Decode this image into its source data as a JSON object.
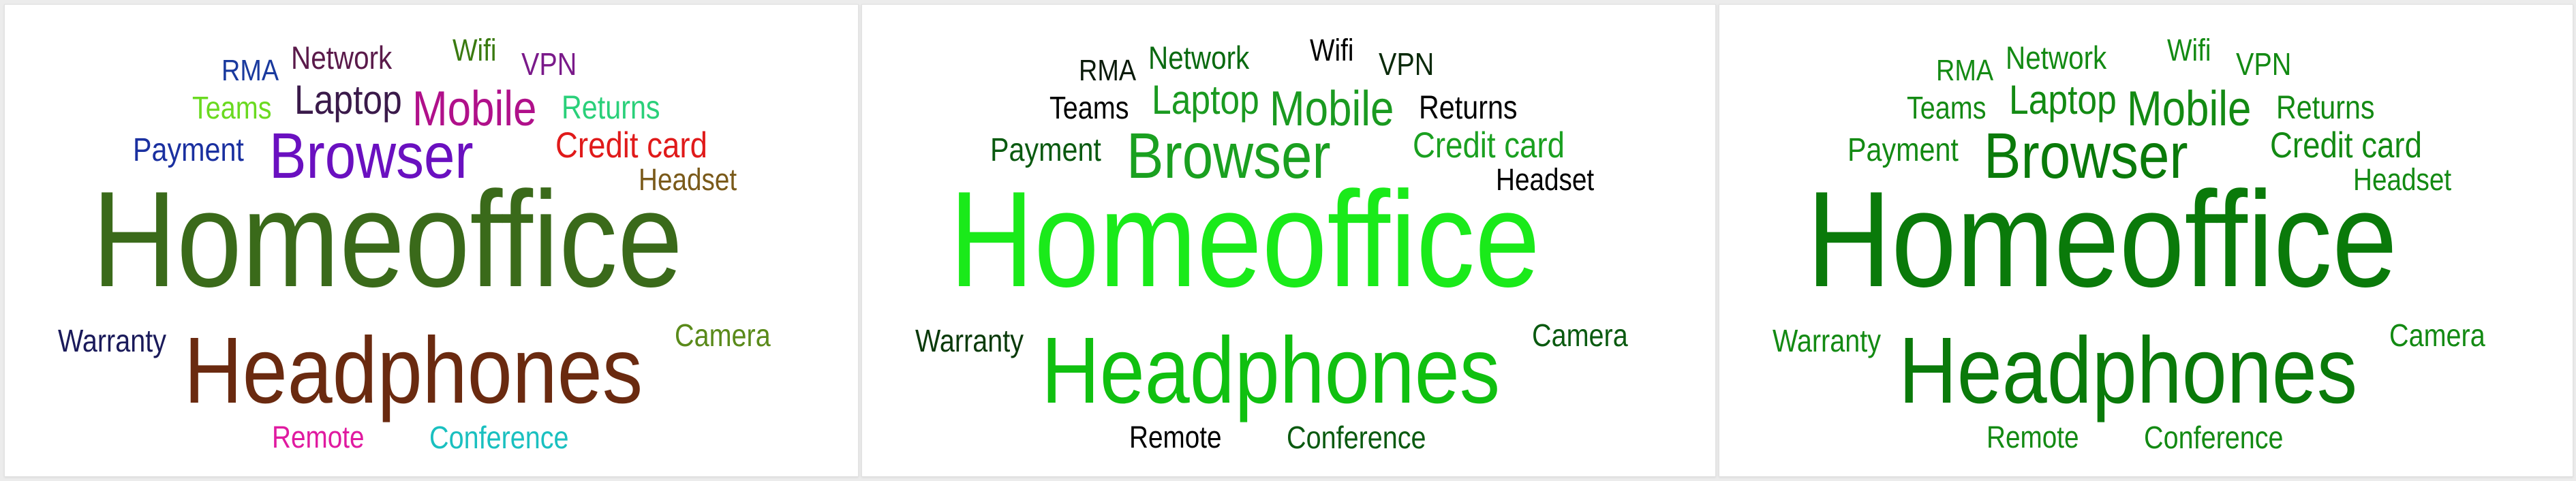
{
  "words": {
    "rma": "RMA",
    "network": "Network",
    "wifi": "Wifi",
    "vpn": "VPN",
    "teams": "Teams",
    "laptop": "Laptop",
    "mobile": "Mobile",
    "returns": "Returns",
    "payment": "Payment",
    "browser": "Browser",
    "creditcard": "Credit card",
    "headset": "Headset",
    "homeoffice": "Homeoffice",
    "warranty": "Warranty",
    "camera": "Camera",
    "headphones": "Headphones",
    "remote": "Remote",
    "conference": "Conference"
  },
  "color_schemes": [
    {
      "rma": "#1a3a9e",
      "network": "#5a1a4a",
      "wifi": "#3a7a10",
      "vpn": "#7a1a8a",
      "teams": "#6ada20",
      "laptop": "#3a1a4a",
      "mobile": "#b0108a",
      "returns": "#2ad07a",
      "payment": "#1a30a0",
      "browser": "#6a10c0",
      "creditcard": "#e01a1a",
      "headset": "#7a5a1a",
      "homeoffice": "#3a6a1a",
      "warranty": "#1a1a5a",
      "camera": "#5a8a1a",
      "headphones": "#6a2a10",
      "remote": "#e01aa0",
      "conference": "#1ac0c0"
    },
    {
      "rma": "#0a1a0a",
      "network": "#0a6a10",
      "wifi": "#000000",
      "vpn": "#0a2a0a",
      "teams": "#000000",
      "laptop": "#1a9a20",
      "mobile": "#1a9a20",
      "returns": "#000000",
      "payment": "#0a5a10",
      "browser": "#1aa020",
      "creditcard": "#1aa020",
      "headset": "#000000",
      "homeoffice": "#1aea1a",
      "warranty": "#0a3a0a",
      "camera": "#0a5a10",
      "headphones": "#10c010",
      "remote": "#000000",
      "conference": "#0a5a10"
    },
    {
      "rma": "#138a13",
      "network": "#138a13",
      "wifi": "#138a13",
      "vpn": "#138a13",
      "teams": "#138a13",
      "laptop": "#138a13",
      "mobile": "#138a13",
      "returns": "#138a13",
      "payment": "#138a13",
      "browser": "#0a7a0a",
      "creditcard": "#138a13",
      "headset": "#138a13",
      "homeoffice": "#0a7a0a",
      "warranty": "#138a13",
      "camera": "#138a13",
      "headphones": "#0a7a0a",
      "remote": "#138a13",
      "conference": "#138a13"
    }
  ]
}
